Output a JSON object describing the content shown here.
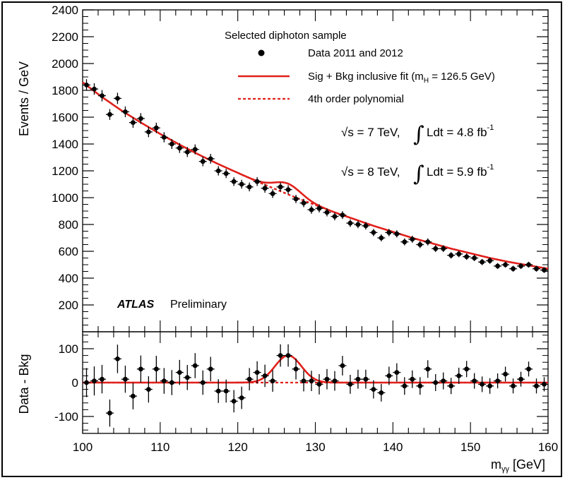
{
  "chart_data": [
    {
      "type": "scatter",
      "panel": "main",
      "xlim": [
        100,
        160
      ],
      "ylim": [
        0,
        2400
      ],
      "ylabel": "Events / GeV",
      "yticks": [
        200,
        400,
        600,
        800,
        1000,
        1200,
        1400,
        1600,
        1800,
        2000,
        2200,
        2400
      ],
      "legend": {
        "title": "Selected diphoton sample",
        "data_label": "Data 2011 and 2012",
        "fit_label_prefix": "Sig + Bkg inclusive fit (m",
        "fit_label_sub": "H",
        "fit_label_suffix": " = 126.5 GeV)",
        "bkg_label": "4th order polynomial"
      },
      "lumi": [
        {
          "prefix": "√s = 7 TeV,",
          "integral": "∫",
          "text": "Ldt = 4.8 fb",
          "exp": "-1"
        },
        {
          "prefix": "√s = 8 TeV,",
          "integral": "∫",
          "text": "Ldt = 5.9 fb",
          "exp": "-1"
        }
      ],
      "experiment": "ATLAS",
      "status": "Preliminary",
      "series": [
        {
          "name": "Data 2011 and 2012",
          "style": "points",
          "x": [
            100.5,
            101.5,
            102.5,
            103.5,
            104.5,
            105.5,
            106.5,
            107.5,
            108.5,
            109.5,
            110.5,
            111.5,
            112.5,
            113.5,
            114.5,
            115.5,
            116.5,
            117.5,
            118.5,
            119.5,
            120.5,
            121.5,
            122.5,
            123.5,
            124.5,
            125.5,
            126.5,
            127.5,
            128.5,
            129.5,
            130.5,
            131.5,
            132.5,
            133.5,
            134.5,
            135.5,
            136.5,
            137.5,
            138.5,
            139.5,
            140.5,
            141.5,
            142.5,
            143.5,
            144.5,
            145.5,
            146.5,
            147.5,
            148.5,
            149.5,
            150.5,
            151.5,
            152.5,
            153.5,
            154.5,
            155.5,
            156.5,
            157.5,
            158.5,
            159.5
          ],
          "y": [
            1840,
            1810,
            1760,
            1620,
            1740,
            1640,
            1560,
            1590,
            1490,
            1520,
            1450,
            1400,
            1370,
            1340,
            1360,
            1270,
            1290,
            1200,
            1180,
            1120,
            1100,
            1080,
            1120,
            1070,
            1030,
            1080,
            1060,
            990,
            960,
            910,
            920,
            890,
            860,
            870,
            810,
            800,
            790,
            740,
            700,
            740,
            730,
            670,
            690,
            650,
            670,
            620,
            620,
            570,
            580,
            560,
            550,
            520,
            530,
            490,
            500,
            470,
            490,
            500,
            470,
            460
          ],
          "y_err": [
            43,
            43,
            42,
            40,
            42,
            40,
            39,
            40,
            39,
            39,
            38,
            37,
            37,
            37,
            37,
            36,
            36,
            35,
            34,
            33,
            33,
            33,
            33,
            33,
            32,
            33,
            33,
            31,
            31,
            30,
            30,
            30,
            29,
            29,
            28,
            28,
            28,
            27,
            26,
            27,
            27,
            26,
            26,
            26,
            26,
            25,
            25,
            24,
            24,
            24,
            23,
            23,
            23,
            22,
            22,
            22,
            22,
            22,
            22,
            21
          ]
        },
        {
          "name": "Sig + Bkg inclusive fit (m_H = 126.5 GeV)",
          "style": "solid",
          "color": "#e0201b",
          "signal_mean": 126.5,
          "signal_sigma": 1.7,
          "signal_peak": 80,
          "background": "4th order polynomial"
        },
        {
          "name": "4th order polynomial",
          "style": "dashed",
          "color": "#e0201b",
          "x": [
            100,
            102.5,
            105,
            107.5,
            110,
            112.5,
            115,
            117.5,
            120,
            122.5,
            125,
            127.5,
            130,
            132.5,
            135,
            137.5,
            140,
            142.5,
            145,
            147.5,
            150,
            152.5,
            155,
            157.5,
            160
          ],
          "y": [
            1860,
            1750,
            1650,
            1560,
            1475,
            1395,
            1320,
            1250,
            1185,
            1120,
            1060,
            1000,
            945,
            890,
            840,
            790,
            745,
            700,
            660,
            620,
            585,
            550,
            520,
            495,
            470
          ]
        }
      ]
    },
    {
      "type": "scatter",
      "panel": "residual",
      "xlim": [
        100,
        160
      ],
      "ylim": [
        -150,
        150
      ],
      "xlabel_prefix": "m",
      "xlabel_sub": "γγ",
      "xlabel_suffix": " [GeV]",
      "ylabel": "Data - Bkg",
      "xticks": [
        100,
        110,
        120,
        130,
        140,
        150,
        160
      ],
      "yticks": [
        -100,
        0,
        100
      ],
      "series": [
        {
          "name": "Data - Bkg",
          "style": "points",
          "x": [
            100.5,
            101.5,
            102.5,
            103.5,
            104.5,
            105.5,
            106.5,
            107.5,
            108.5,
            109.5,
            110.5,
            111.5,
            112.5,
            113.5,
            114.5,
            115.5,
            116.5,
            117.5,
            118.5,
            119.5,
            120.5,
            121.5,
            122.5,
            123.5,
            124.5,
            125.5,
            126.5,
            127.5,
            128.5,
            129.5,
            130.5,
            131.5,
            132.5,
            133.5,
            134.5,
            135.5,
            136.5,
            137.5,
            138.5,
            139.5,
            140.5,
            141.5,
            142.5,
            143.5,
            144.5,
            145.5,
            146.5,
            147.5,
            148.5,
            149.5,
            150.5,
            151.5,
            152.5,
            153.5,
            154.5,
            155.5,
            156.5,
            157.5,
            158.5,
            159.5
          ],
          "y": [
            0,
            5,
            10,
            -90,
            70,
            10,
            -40,
            40,
            -20,
            40,
            5,
            0,
            30,
            15,
            50,
            0,
            40,
            -25,
            -25,
            -55,
            -45,
            10,
            30,
            20,
            5,
            80,
            80,
            40,
            5,
            5,
            -5,
            10,
            5,
            50,
            -5,
            10,
            10,
            -20,
            -30,
            20,
            30,
            -10,
            10,
            -10,
            40,
            0,
            5,
            -10,
            20,
            40,
            5,
            -5,
            -10,
            5,
            25,
            -10,
            10,
            40,
            -10,
            -5
          ],
          "y_err": [
            43,
            43,
            42,
            40,
            42,
            40,
            39,
            40,
            39,
            39,
            38,
            37,
            37,
            37,
            37,
            36,
            36,
            35,
            34,
            33,
            33,
            33,
            33,
            33,
            32,
            33,
            33,
            31,
            31,
            30,
            30,
            30,
            29,
            29,
            28,
            28,
            28,
            27,
            26,
            27,
            27,
            26,
            26,
            26,
            26,
            25,
            25,
            24,
            24,
            24,
            23,
            23,
            23,
            22,
            22,
            22,
            22,
            22,
            22,
            21
          ]
        },
        {
          "name": "Signal component",
          "style": "solid",
          "color": "#e0201b",
          "signal_mean": 126.5,
          "signal_sigma": 1.7,
          "signal_peak": 80
        },
        {
          "name": "Background zero line",
          "style": "dashed",
          "color": "#e0201b",
          "y_const": 0
        }
      ]
    }
  ]
}
